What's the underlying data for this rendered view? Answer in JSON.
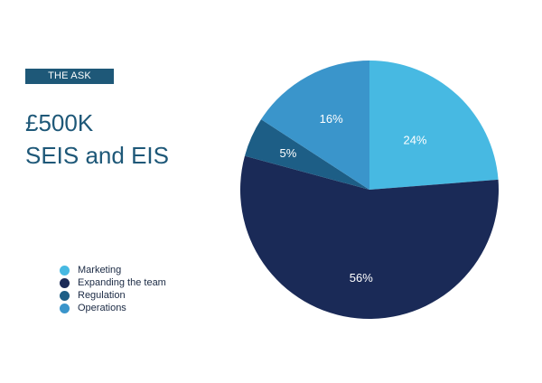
{
  "tag": "THE ASK",
  "headline": {
    "line1": "£500K",
    "line2": "SEIS and EIS"
  },
  "chart_data": {
    "type": "pie",
    "start_position": "top",
    "direction": "clockwise",
    "legend_position": "bottom-left",
    "slices": [
      {
        "label": "Marketing",
        "value": 24,
        "value_label": "24%",
        "color": "#47b9e2"
      },
      {
        "label": "Expanding the team",
        "value": 56,
        "value_label": "56%",
        "color": "#1a2a57"
      },
      {
        "label": "Regulation",
        "value": 5,
        "value_label": "5%",
        "color": "#1d5e86"
      },
      {
        "label": "Operations",
        "value": 16,
        "value_label": "16%",
        "color": "#3a95cb"
      }
    ]
  }
}
